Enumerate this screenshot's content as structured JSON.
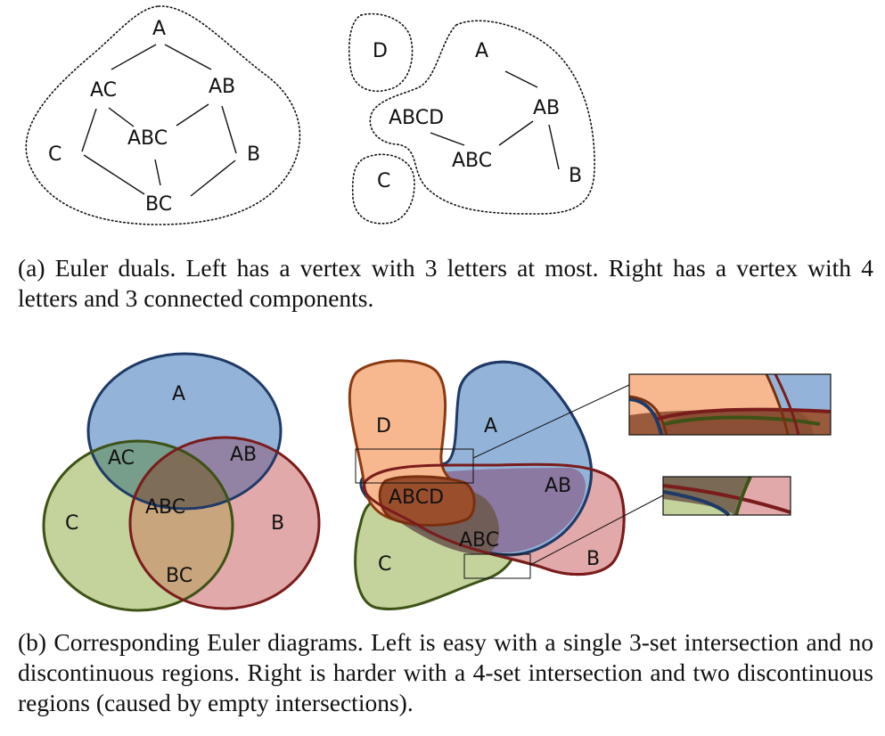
{
  "panel_a": {
    "left_graph": {
      "nodes": {
        "A": "A",
        "AC": "AC",
        "AB": "AB",
        "ABC": "ABC",
        "C": "C",
        "B": "B",
        "BC": "BC"
      }
    },
    "right_graph": {
      "nodes": {
        "D": "D",
        "A": "A",
        "ABCD": "ABCD",
        "AB": "AB",
        "ABC": "ABC",
        "C": "C",
        "B": "B"
      }
    },
    "caption": "(a)  Euler duals.  Left has a vertex with 3 letters at most.  Right has a vertex with 4 letters and 3 connected components."
  },
  "panel_b": {
    "left_diagram": {
      "labels": {
        "A": "A",
        "AC": "AC",
        "AB": "AB",
        "ABC": "ABC",
        "C": "C",
        "B": "B",
        "BC": "BC"
      }
    },
    "right_diagram": {
      "labels": {
        "D": "D",
        "A": "A",
        "ABCD": "ABCD",
        "AB": "AB",
        "ABC": "ABC",
        "C": "C",
        "B": "B"
      }
    },
    "colors": {
      "set_a_fill": "#94b3d8",
      "set_a_stroke": "#1f3a66",
      "set_b_fill": "#e2a9aa",
      "set_b_stroke": "#7a1c1c",
      "set_c_fill": "#c3d39b",
      "set_c_stroke": "#3d5216",
      "set_d_fill": "#f7b88f",
      "set_d_stroke": "#8a3a12"
    },
    "caption": "(b)  Corresponding Euler diagrams. Left is easy with a single 3-set intersection and no discontinuous regions. Right is harder with a 4-set intersection and two discontinuous regions (caused by empty intersections)."
  }
}
